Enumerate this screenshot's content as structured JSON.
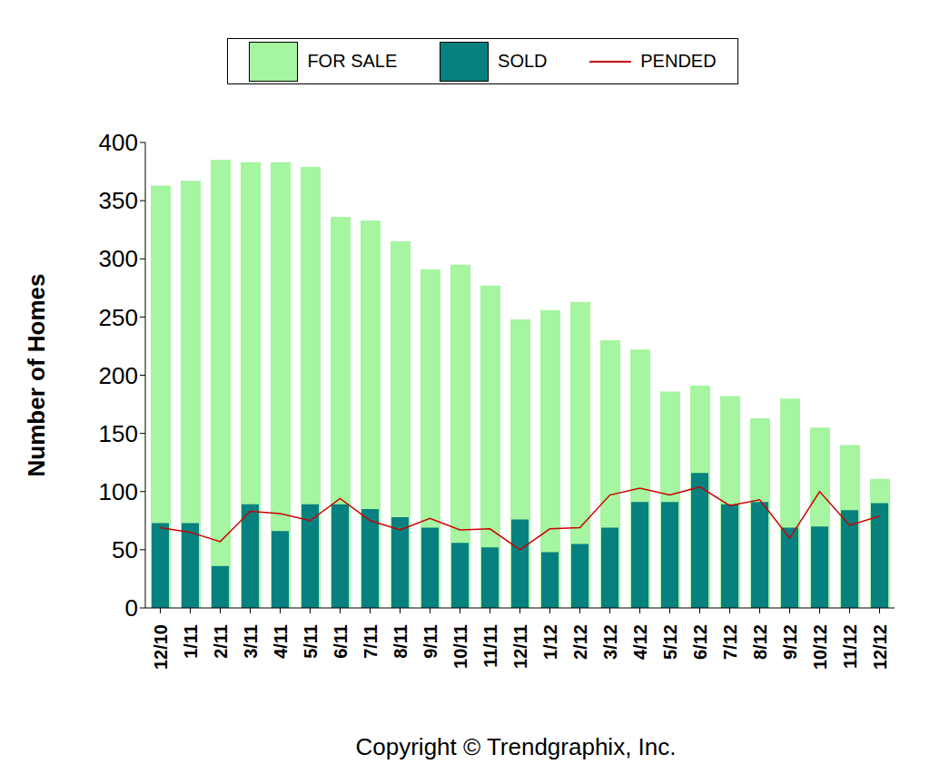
{
  "chart_data": {
    "type": "bar",
    "y_label": "Number of Homes",
    "annotations": [
      "Copyright © Trendgraphix, Inc."
    ],
    "categories": [
      "12/10",
      "1/11",
      "2/11",
      "3/11",
      "4/11",
      "5/11",
      "6/11",
      "7/11",
      "8/11",
      "9/11",
      "10/11",
      "11/11",
      "12/11",
      "1/12",
      "2/12",
      "3/12",
      "4/12",
      "5/12",
      "6/12",
      "7/12",
      "8/12",
      "9/12",
      "10/12",
      "11/12",
      "12/12"
    ],
    "series": [
      {
        "name": "FOR SALE",
        "type": "bar",
        "color": "#a6f5a0",
        "values": [
          363,
          367,
          385,
          383,
          383,
          379,
          336,
          333,
          315,
          291,
          295,
          277,
          248,
          256,
          263,
          230,
          222,
          186,
          191,
          182,
          163,
          180,
          155,
          140,
          111
        ]
      },
      {
        "name": "SOLD",
        "type": "bar",
        "color": "#078080",
        "values": [
          73,
          73,
          36,
          89,
          66,
          89,
          89,
          85,
          78,
          69,
          56,
          52,
          76,
          48,
          55,
          69,
          91,
          91,
          116,
          89,
          91,
          69,
          70,
          84,
          90
        ]
      },
      {
        "name": "PENDED",
        "type": "line",
        "color": "#cc0000",
        "values": [
          69,
          65,
          57,
          83,
          81,
          75,
          94,
          75,
          67,
          77,
          67,
          68,
          50,
          68,
          69,
          97,
          103,
          97,
          104,
          88,
          93,
          60,
          100,
          71,
          79
        ]
      }
    ],
    "ylim": [
      0,
      400
    ],
    "yticks": [
      0,
      50,
      100,
      150,
      200,
      250,
      300,
      350,
      400
    ],
    "grid": false,
    "legend": "top"
  }
}
